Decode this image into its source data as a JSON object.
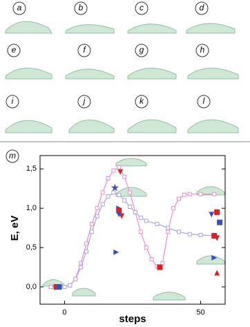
{
  "panel_labels": [
    "a",
    "b",
    "c",
    "d",
    "e",
    "f",
    "g",
    "h",
    "i",
    "j",
    "k",
    "l"
  ],
  "chart_data": {
    "type": "line",
    "panel_label": "m",
    "x_label": "steps",
    "y_label": "E, eV",
    "xlim": [
      -9,
      59
    ],
    "ylim": [
      -0.22,
      1.67
    ],
    "xticks": [
      0,
      50
    ],
    "yticks": [
      {
        "value": 0,
        "label": "0,0"
      },
      {
        "value": 0.5,
        "label": "0,5"
      },
      {
        "value": 1,
        "label": "1,0"
      },
      {
        "value": 1.5,
        "label": "1,5"
      }
    ],
    "right_axis_ticks": true,
    "series": [
      {
        "color": "#f08ad0",
        "marker": "square-open",
        "line": true,
        "x": [
          -5,
          -3,
          0,
          2,
          4,
          6,
          8,
          10,
          12,
          14,
          16,
          18,
          20,
          22,
          24,
          26,
          28,
          30,
          32,
          34,
          36,
          38,
          40,
          42,
          44,
          46,
          50,
          55
        ],
        "values": [
          0,
          0,
          0,
          0.02,
          0.1,
          0.3,
          0.55,
          0.8,
          1.0,
          1.2,
          1.38,
          1.48,
          1.52,
          1.4,
          1.2,
          0.95,
          0.7,
          0.5,
          0.35,
          0.26,
          0.3,
          0.7,
          1.0,
          1.12,
          1.17,
          1.18,
          1.18,
          1.18
        ]
      },
      {
        "color": "#a9a0e8",
        "marker": "square-open",
        "line": true,
        "x": [
          -5,
          0,
          2,
          4,
          6,
          8,
          10,
          12,
          14,
          16,
          18,
          20,
          22,
          24,
          26,
          28,
          30,
          34,
          38,
          42,
          46,
          50,
          55
        ],
        "values": [
          0,
          0,
          0.02,
          0.1,
          0.25,
          0.45,
          0.7,
          0.9,
          1.05,
          1.15,
          1.2,
          1.17,
          1.1,
          1.02,
          0.95,
          0.88,
          0.84,
          0.8,
          0.75,
          0.7,
          0.67,
          0.66,
          0.65
        ]
      },
      {
        "color": "#3a4fc0",
        "marker": "star",
        "x": [
          18.5
        ],
        "values": [
          1.26
        ]
      },
      {
        "color": "#e02020",
        "marker": "triangle-down",
        "x": [
          20.5,
          21,
          56
        ],
        "values": [
          1.46,
          0.9,
          0.62
        ]
      },
      {
        "color": "#3a4fc0",
        "marker": "triangle-right",
        "x": [
          20,
          19,
          55
        ],
        "values": [
          1.0,
          0.44,
          0.37
        ]
      },
      {
        "color": "#e02020",
        "marker": "square",
        "x": [
          20,
          56,
          55,
          -3,
          35
        ],
        "values": [
          0.97,
          0.95,
          0.65,
          0,
          0.25
        ]
      },
      {
        "color": "#3a4fc0",
        "marker": "square",
        "x": [
          57,
          -2
        ],
        "values": [
          0.82,
          0
        ]
      },
      {
        "color": "#3a4fc0",
        "marker": "triangle-down",
        "x": [
          54,
          20
        ],
        "values": [
          0.92,
          0.92
        ]
      },
      {
        "color": "#e02020",
        "marker": "triangle-up",
        "x": [
          56
        ],
        "values": [
          0.18
        ]
      }
    ]
  }
}
